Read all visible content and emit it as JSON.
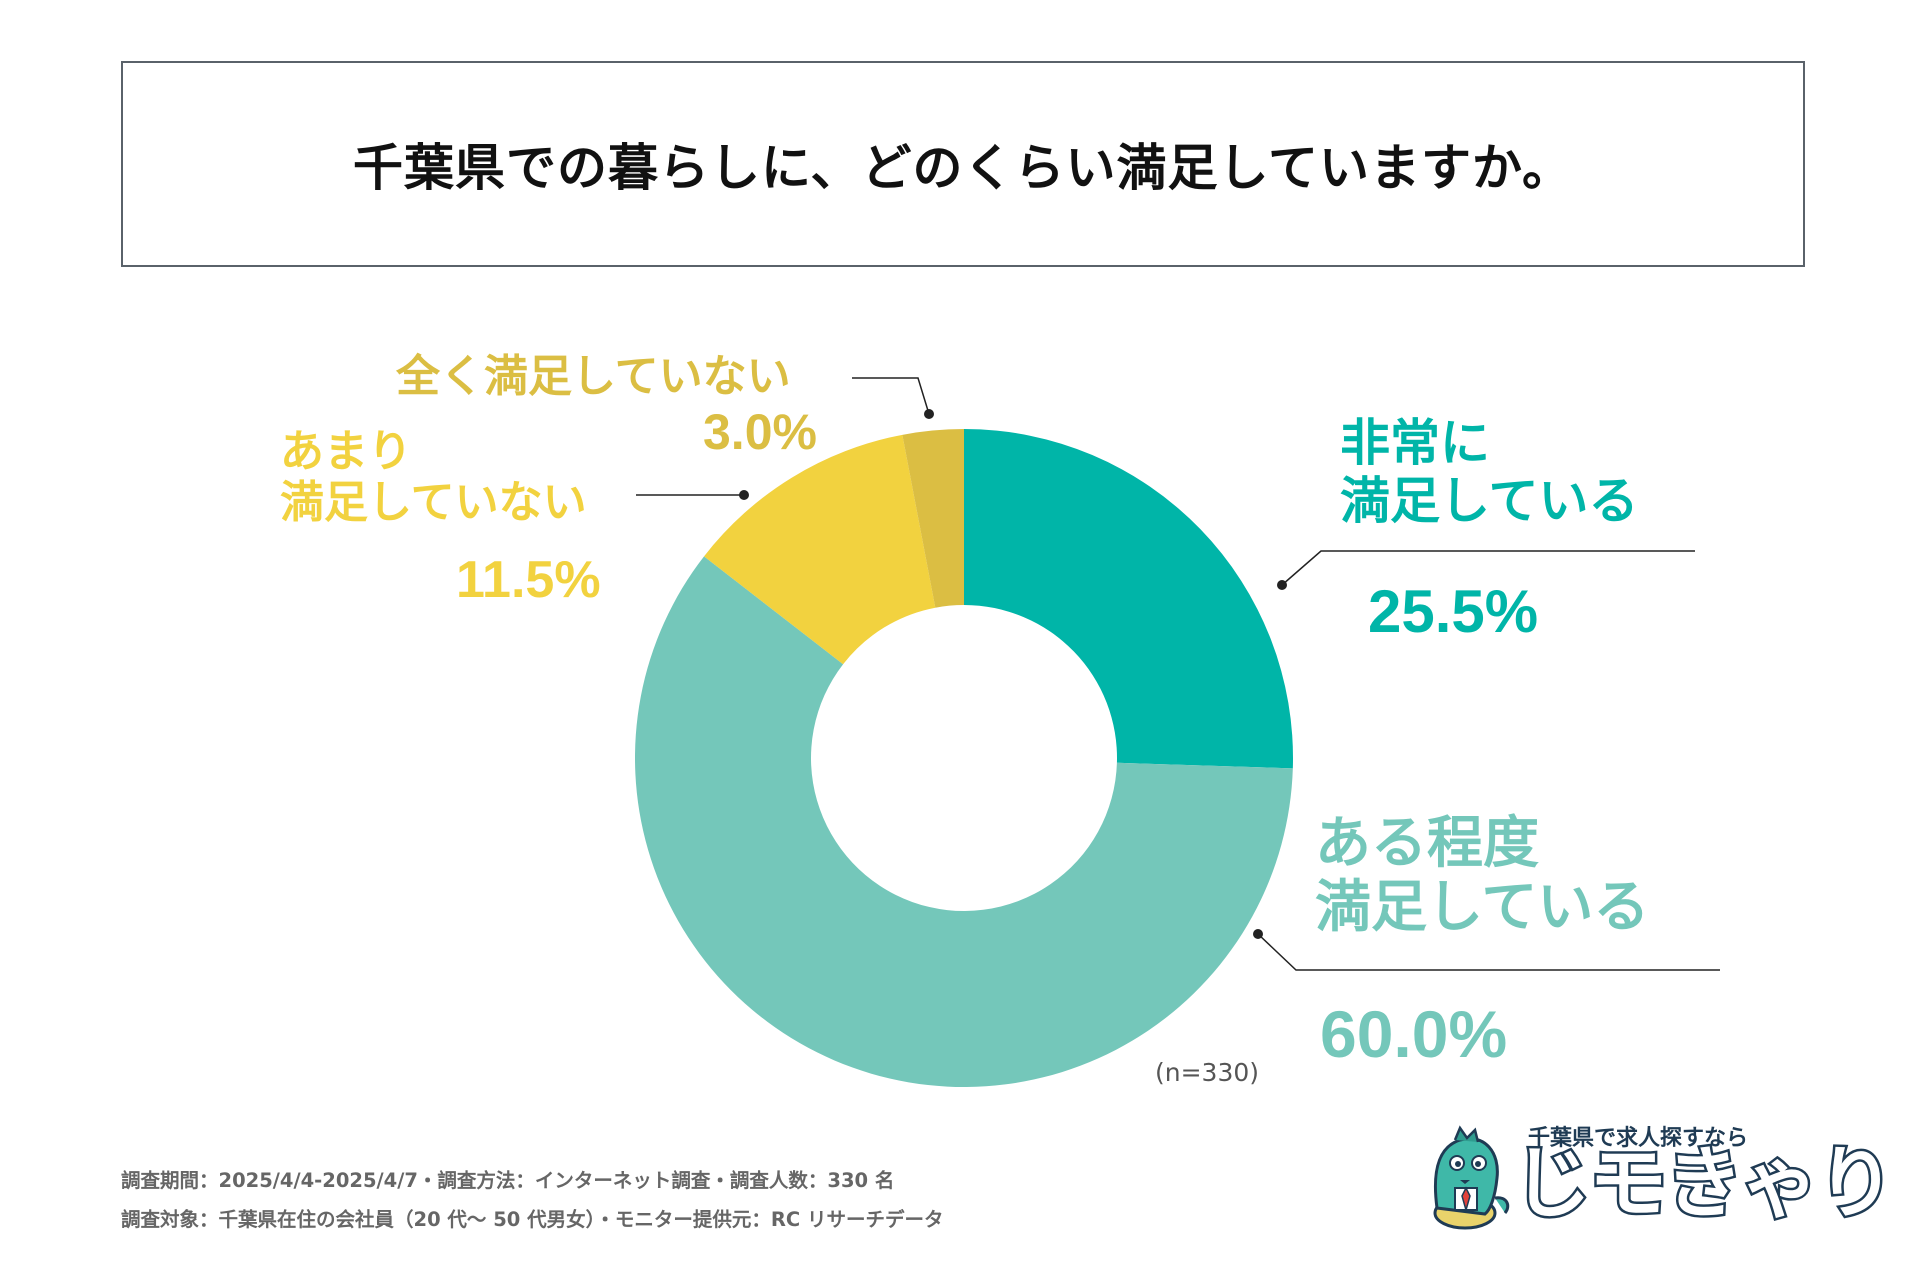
{
  "title": "千葉県での暮らしに、どのくらい満足していますか。",
  "chart_data": {
    "type": "pie",
    "donut": true,
    "title": "千葉県での暮らしに、どのくらい満足していますか。",
    "n_label": "(n=330)",
    "slices": [
      {
        "key": "very",
        "line1": "非常に",
        "line2": "満足している",
        "value": 25.5,
        "pct_text": "25.5%",
        "color": "#00b5a8"
      },
      {
        "key": "somewhat",
        "line1": "ある程度",
        "line2": "満足している",
        "value": 60.0,
        "pct_text": "60.0%",
        "color": "#74c7ba"
      },
      {
        "key": "not_very",
        "line1": "あまり",
        "line2": "満足していない",
        "value": 11.5,
        "pct_text": "11.5%",
        "color": "#f2d23f"
      },
      {
        "key": "not_at_all",
        "line1": "全く満足していない",
        "line2": "",
        "value": 3.0,
        "pct_text": "3.0%",
        "color": "#dbbe43"
      }
    ]
  },
  "footer": {
    "line1": "調査期間：2025/4/4-2025/4/7・調査方法：インターネット調査・調査人数：330 名",
    "line2": "調査対象：千葉県在住の会社員（20 代〜 50 代男女）・モニター提供元：RC リサーチデータ"
  },
  "logo": {
    "tagline": "千葉県で求人探すなら",
    "name": "じモきゃり"
  },
  "colors": {
    "outline": "#5a626a",
    "leader": "#222222",
    "logo_text": "#1f3b54"
  }
}
